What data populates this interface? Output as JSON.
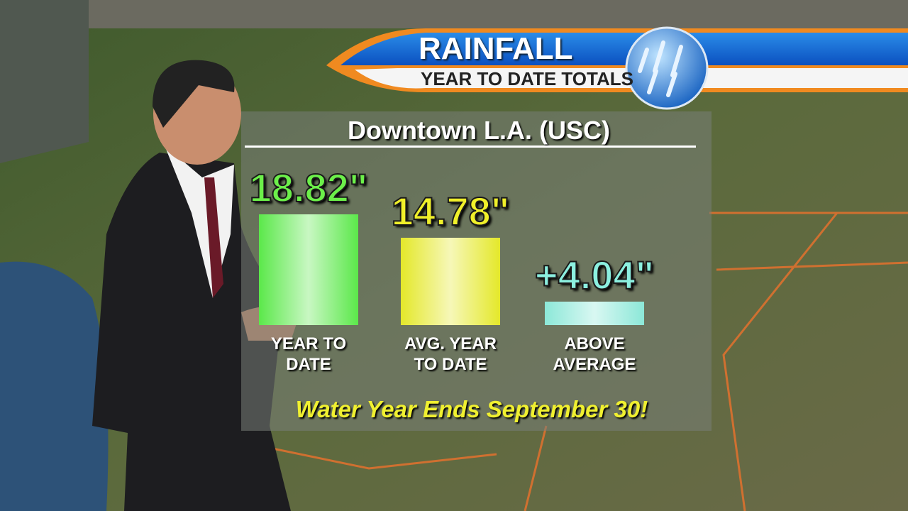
{
  "chart_data": {
    "type": "bar",
    "title": "RAINFALL",
    "subtitle": "YEAR TO DATE TOTALS",
    "panel_title": "Downtown L.A. (USC)",
    "categories": [
      "YEAR TO DATE",
      "AVG. YEAR TO DATE",
      "ABOVE AVERAGE"
    ],
    "values": [
      18.82,
      14.78,
      4.04
    ],
    "value_labels": [
      "18.82\"",
      "14.78\"",
      "+4.04\""
    ],
    "colors": [
      "#5be84a",
      "#e4e82a",
      "#8ce8d8"
    ],
    "label_colors": [
      "#6cf04a",
      "#f0f02a",
      "#8cf0e0"
    ],
    "annotation": "Water Year Ends September 30!"
  }
}
